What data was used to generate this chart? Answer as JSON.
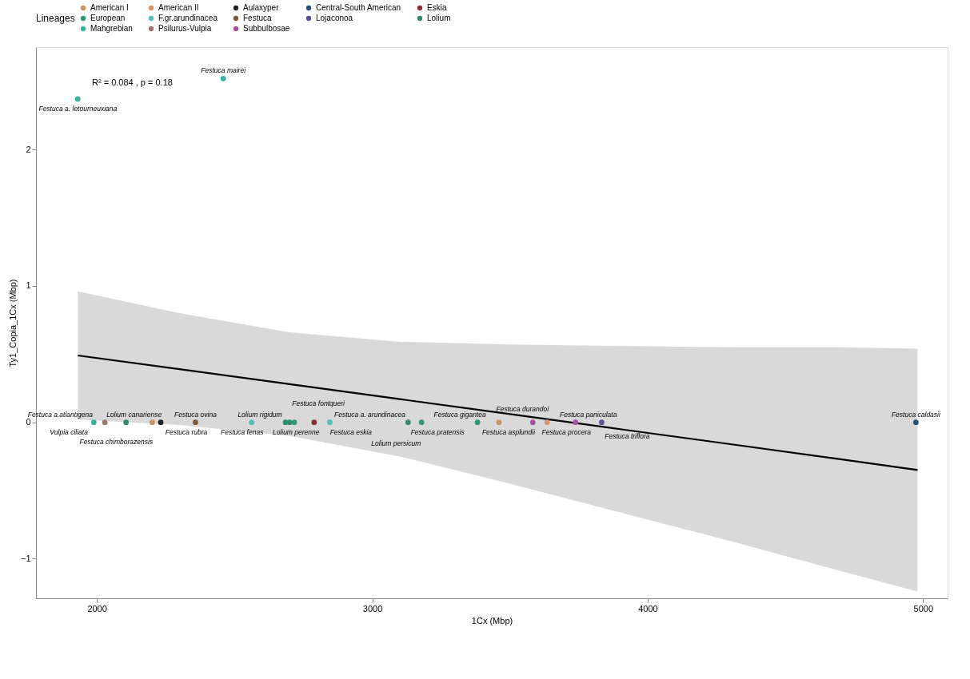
{
  "chart_data": {
    "type": "scatter",
    "xlabel": "1Cx (Mbp)",
    "ylabel": "Ty1_Copia_1Cx (Mbp)",
    "legend_title": "Lineages",
    "legend": "top",
    "xlim": [
      1779,
      5089
    ],
    "xticks": [
      2000,
      3000,
      4000,
      5000
    ],
    "ylim": [
      -1.29,
      2.75
    ],
    "yticks": [
      -1,
      0,
      1,
      2
    ],
    "grid": false,
    "marker": "circle",
    "series": [
      {
        "name": "American I",
        "color": "#c9955a",
        "x": [
          2201,
          3460
        ],
        "values": [
          0,
          0
        ]
      },
      {
        "name": "American II",
        "color": "#e0946a",
        "x": [
          3635
        ],
        "values": [
          0
        ]
      },
      {
        "name": "Aulaxyper",
        "color": "#222222",
        "x": [
          2232
        ],
        "values": [
          0
        ]
      },
      {
        "name": "Central-South American",
        "color": "#24507a",
        "x": [
          4974
        ],
        "values": [
          0
        ]
      },
      {
        "name": "Eskia",
        "color": "#8c2d3c",
        "x": [
          2789
        ],
        "values": [
          0
        ]
      },
      {
        "name": "European",
        "color": "#2a9d6f",
        "x": [
          2717,
          3179,
          3382
        ],
        "values": [
          0,
          0,
          0
        ]
      },
      {
        "name": "F.gr.arundinacea",
        "color": "#4cc3b5",
        "x": [
          2562,
          2846
        ],
        "values": [
          0,
          0
        ]
      },
      {
        "name": "Festuca",
        "color": "#7a5a3a",
        "x": [
          2358
        ],
        "values": [
          0
        ]
      },
      {
        "name": "Lojaconoa",
        "color": "#55529a",
        "x": [
          3833
        ],
        "values": [
          0
        ]
      },
      {
        "name": "Lolium",
        "color": "#2e8b6f",
        "x": [
          2106,
          2685,
          2700,
          3130
        ],
        "values": [
          0,
          0,
          0,
          0
        ]
      },
      {
        "name": "Mahgrebian",
        "color": "#35b49b",
        "x": [
          1931,
          2459,
          1989
        ],
        "values": [
          2.37,
          2.52,
          0
        ]
      },
      {
        "name": "Psilurus-Vulpia",
        "color": "#a07272",
        "x": [
          2029
        ],
        "values": [
          0
        ]
      },
      {
        "name": "Subbulbosae",
        "color": "#a5519f",
        "x": [
          3583,
          3738
        ],
        "values": [
          0,
          0
        ]
      },
      {
        "type": "line",
        "marker": "none",
        "color": "#000000",
        "x": [
          1931,
          2300,
          2700,
          3100,
          3500,
          3900,
          4300,
          4700,
          4980
        ],
        "values": [
          0.49,
          0.39,
          0.28,
          0.17,
          0.06,
          -0.05,
          -0.16,
          -0.27,
          -0.35
        ],
        "lower": [
          0.02,
          -0.02,
          -0.1,
          -0.25,
          -0.45,
          -0.66,
          -0.87,
          -1.09,
          -1.24
        ],
        "upper": [
          0.96,
          0.8,
          0.66,
          0.59,
          0.57,
          0.56,
          0.55,
          0.55,
          0.54
        ]
      }
    ],
    "annotations": [
      "R² = 0.084 , p = 0.18",
      {
        "text": "Festuca a. letourneuxiana",
        "x": 1931,
        "y": 2.37
      },
      {
        "text": "Festuca mairei",
        "x": 2459,
        "y": 2.52
      },
      {
        "text": "Festuca a.atlantigena",
        "x": 1989,
        "y": 0
      },
      {
        "text": "Vulpia ciliata",
        "x": 2029,
        "y": 0
      },
      {
        "text": "Lolium canariense",
        "x": 2106,
        "y": 0
      },
      {
        "text": "Festuca chimborazensis",
        "x": 2201,
        "y": 0
      },
      {
        "text": "Festuca rubra",
        "x": 2232,
        "y": 0
      },
      {
        "text": "Festuca ovina",
        "x": 2358,
        "y": 0
      },
      {
        "text": "Festuca fenas",
        "x": 2562,
        "y": 0
      },
      {
        "text": "Lolium rigidum",
        "x": 2685,
        "y": 0
      },
      {
        "text": "Festuca fontqueri",
        "x": 2717,
        "y": 0
      },
      {
        "text": "Lolium perenne",
        "x": 2700,
        "y": 0
      },
      {
        "text": "Festuca eskia",
        "x": 2789,
        "y": 0
      },
      {
        "text": "Festuca a. arundinacea",
        "x": 2846,
        "y": 0
      },
      {
        "text": "Lolium persicum",
        "x": 3130,
        "y": 0
      },
      {
        "text": "Festuca pratensis",
        "x": 3179,
        "y": 0
      },
      {
        "text": "Festuca gigantea",
        "x": 3382,
        "y": 0
      },
      {
        "text": "Festuca asplundii",
        "x": 3460,
        "y": 0
      },
      {
        "text": "Festuca durandoi",
        "x": 3583,
        "y": 0
      },
      {
        "text": "Festuca procera",
        "x": 3635,
        "y": 0
      },
      {
        "text": "Festuca paniculata",
        "x": 3738,
        "y": 0
      },
      {
        "text": "Festuca triflora",
        "x": 3833,
        "y": 0
      },
      {
        "text": "Festuca caldasii",
        "x": 4974,
        "y": 0
      }
    ]
  }
}
